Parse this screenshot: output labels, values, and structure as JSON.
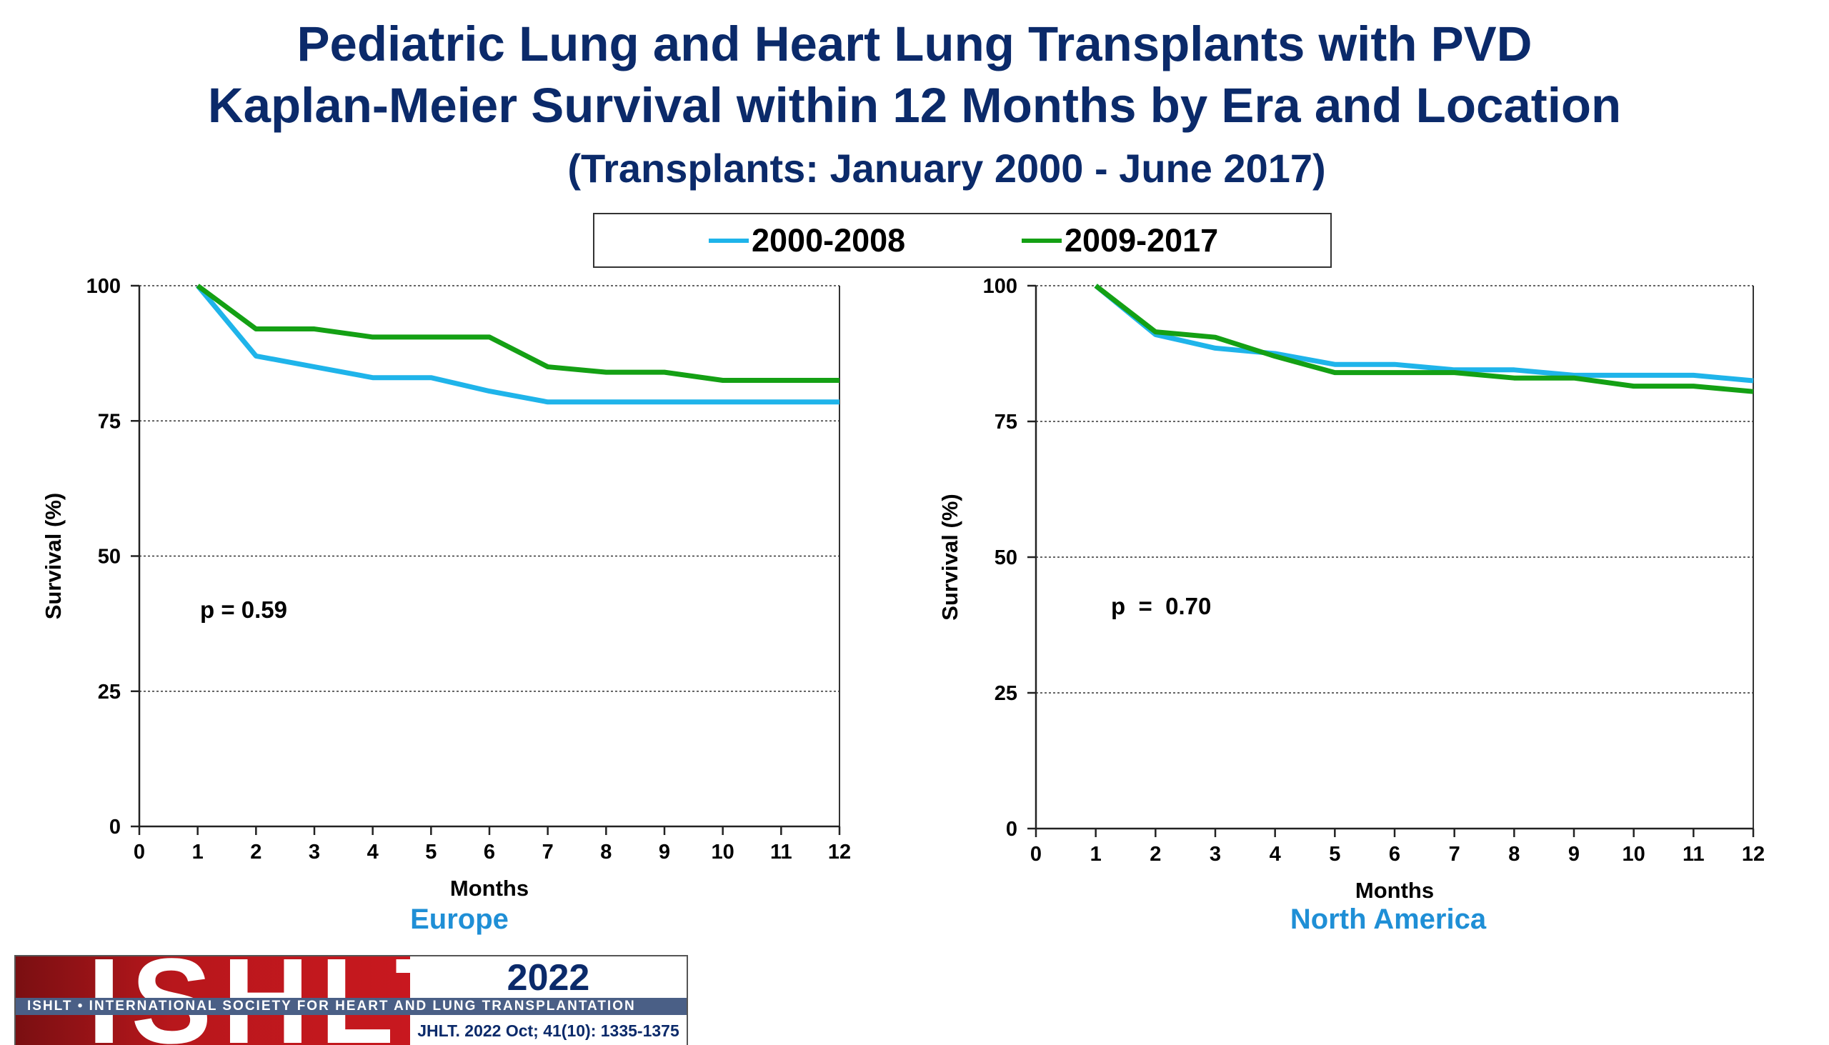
{
  "header": {
    "title_line1": "Pediatric Lung and Heart Lung Transplants with PVD",
    "title_line2": "Kaplan-Meier Survival within 12 Months by Era and Location",
    "subtitle": "(Transplants: January 2000 - June 2017)"
  },
  "legend": [
    {
      "label": "2000-2008",
      "color": "#1fb4ea"
    },
    {
      "label": "2009-2017",
      "color": "#14a014"
    }
  ],
  "chart_data": [
    {
      "type": "line",
      "panel_label": "Europe",
      "panel_label_color": "#1f8fd6",
      "xlabel": "Months",
      "ylabel": "Survival (%)",
      "xlim": [
        0,
        12
      ],
      "ylim": [
        0,
        100
      ],
      "x_ticks": [
        "0",
        "1",
        "2",
        "3",
        "4",
        "5",
        "6",
        "7",
        "8",
        "9",
        "10",
        "11",
        "12"
      ],
      "y_ticks": [
        "0",
        "25",
        "50",
        "75",
        "100"
      ],
      "grid": "horizontal dotted",
      "annotation": "p = 0.59",
      "series": [
        {
          "name": "2000-2008",
          "color": "#1fb4ea",
          "x": [
            1,
            2,
            3,
            4,
            5,
            6,
            7,
            8,
            9,
            10,
            11,
            12
          ],
          "y": [
            100,
            87,
            85,
            83,
            83,
            80.5,
            78.5,
            78.5,
            78.5,
            78.5,
            78.5,
            78.5
          ]
        },
        {
          "name": "2009-2017",
          "color": "#14a014",
          "x": [
            1,
            2,
            3,
            4,
            5,
            6,
            7,
            8,
            9,
            10,
            11,
            12
          ],
          "y": [
            100,
            92,
            92,
            90.5,
            90.5,
            90.5,
            85,
            84,
            84,
            82.5,
            82.5,
            82.5
          ]
        }
      ]
    },
    {
      "type": "line",
      "panel_label": "North America",
      "panel_label_color": "#1f8fd6",
      "xlabel": "Months",
      "ylabel": "Survival (%)",
      "xlim": [
        0,
        12
      ],
      "ylim": [
        0,
        100
      ],
      "x_ticks": [
        "0",
        "1",
        "2",
        "3",
        "4",
        "5",
        "6",
        "7",
        "8",
        "9",
        "10",
        "11",
        "12"
      ],
      "y_ticks": [
        "0",
        "25",
        "50",
        "75",
        "100"
      ],
      "grid": "horizontal dotted",
      "annotation": "p  =  0.70",
      "series": [
        {
          "name": "2000-2008",
          "color": "#1fb4ea",
          "x": [
            1,
            2,
            3,
            4,
            5,
            6,
            7,
            8,
            9,
            10,
            11,
            12
          ],
          "y": [
            100,
            91,
            88.5,
            87.5,
            85.5,
            85.5,
            84.5,
            84.5,
            83.5,
            83.5,
            83.5,
            82.5
          ]
        },
        {
          "name": "2009-2017",
          "color": "#14a014",
          "x": [
            1,
            2,
            3,
            4,
            5,
            6,
            7,
            8,
            9,
            10,
            11,
            12
          ],
          "y": [
            100,
            91.5,
            90.5,
            87,
            84,
            84,
            84,
            83,
            83,
            81.5,
            81.5,
            80.5
          ]
        }
      ]
    }
  ],
  "logo": {
    "wordmark": "ISHLT",
    "band_text": "ISHLT • INTERNATIONAL SOCIETY FOR HEART AND LUNG TRANSPLANTATION",
    "year": "2022",
    "citation": "JHLT. 2022 Oct; 41(10): 1335-1375"
  }
}
